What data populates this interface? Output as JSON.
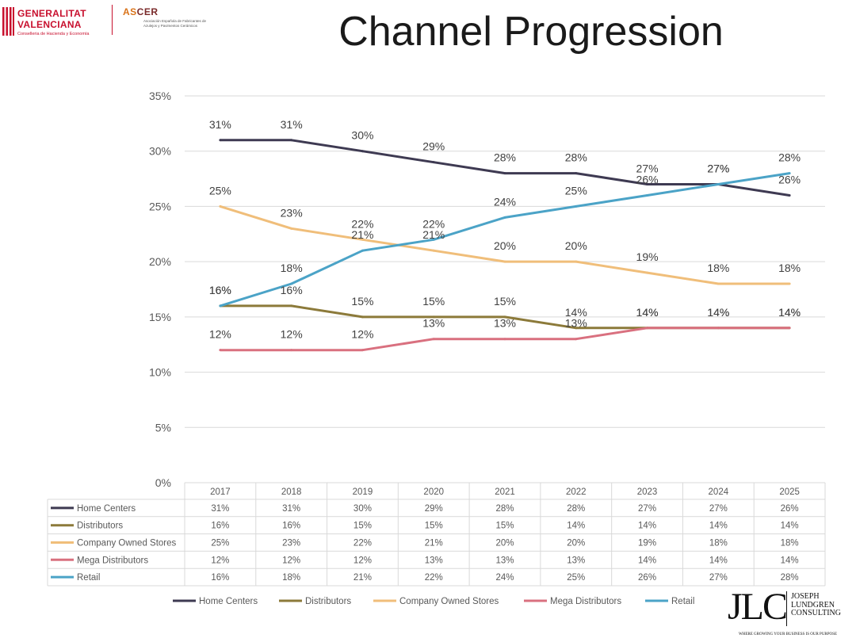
{
  "header": {
    "gva_line1": "GENERALITAT",
    "gva_line2": "VALENCIANA",
    "gva_line3": "Conselleria de Hacienda y Economía",
    "ascer_a": "AS",
    "ascer_b": "CER",
    "ascer_sub": "Asociación Española de Fabricantes de Azulejos y Pavimentos Cerámicos",
    "title": "Channel Progression"
  },
  "footer_logo": {
    "mark": "JLC",
    "name_line1": "JOSEPH",
    "name_line2": "LUNDGREN",
    "name_line3": "CONSULTING",
    "tagline": "WHERE GROWING YOUR BUSINESS IS OUR PURPOSE"
  },
  "chart_data": {
    "type": "line",
    "title": "Channel Progression",
    "categories": [
      "2017",
      "2018",
      "2019",
      "2020",
      "2021",
      "2022",
      "2023",
      "2024",
      "2025"
    ],
    "ylim": [
      0,
      35
    ],
    "yticks": [
      0,
      5,
      10,
      15,
      20,
      25,
      30,
      35
    ],
    "ytick_labels": [
      "0%",
      "5%",
      "10%",
      "15%",
      "20%",
      "25%",
      "30%",
      "35%"
    ],
    "grid": true,
    "legend_position": "bottom",
    "has_data_table": true,
    "series": [
      {
        "name": "Home Centers",
        "color": "#3e3a52",
        "values": [
          31,
          31,
          30,
          29,
          28,
          28,
          27,
          27,
          26
        ],
        "labels": [
          "31%",
          "31%",
          "30%",
          "29%",
          "28%",
          "28%",
          "27%",
          "27%",
          "26%"
        ]
      },
      {
        "name": "Distributors",
        "color": "#8c7a3a",
        "values": [
          16,
          16,
          15,
          15,
          15,
          14,
          14,
          14,
          14
        ],
        "labels": [
          "16%",
          "16%",
          "15%",
          "15%",
          "15%",
          "14%",
          "14%",
          "14%",
          "14%"
        ]
      },
      {
        "name": "Company Owned Stores",
        "color": "#f0be7a",
        "values": [
          25,
          23,
          22,
          21,
          20,
          20,
          19,
          18,
          18
        ],
        "labels": [
          "25%",
          "23%",
          "22%",
          "21%",
          "20%",
          "20%",
          "19%",
          "18%",
          "18%"
        ]
      },
      {
        "name": "Mega Distributors",
        "color": "#d9707f",
        "values": [
          12,
          12,
          12,
          13,
          13,
          13,
          14,
          14,
          14
        ],
        "labels": [
          "12%",
          "12%",
          "12%",
          "13%",
          "13%",
          "13%",
          "14%",
          "14%",
          "14%"
        ]
      },
      {
        "name": "Retail",
        "color": "#4ba3c7",
        "values": [
          16,
          18,
          21,
          22,
          24,
          25,
          26,
          27,
          28
        ],
        "labels": [
          "16%",
          "18%",
          "21%",
          "22%",
          "24%",
          "25%",
          "26%",
          "27%",
          "28%"
        ]
      }
    ]
  }
}
